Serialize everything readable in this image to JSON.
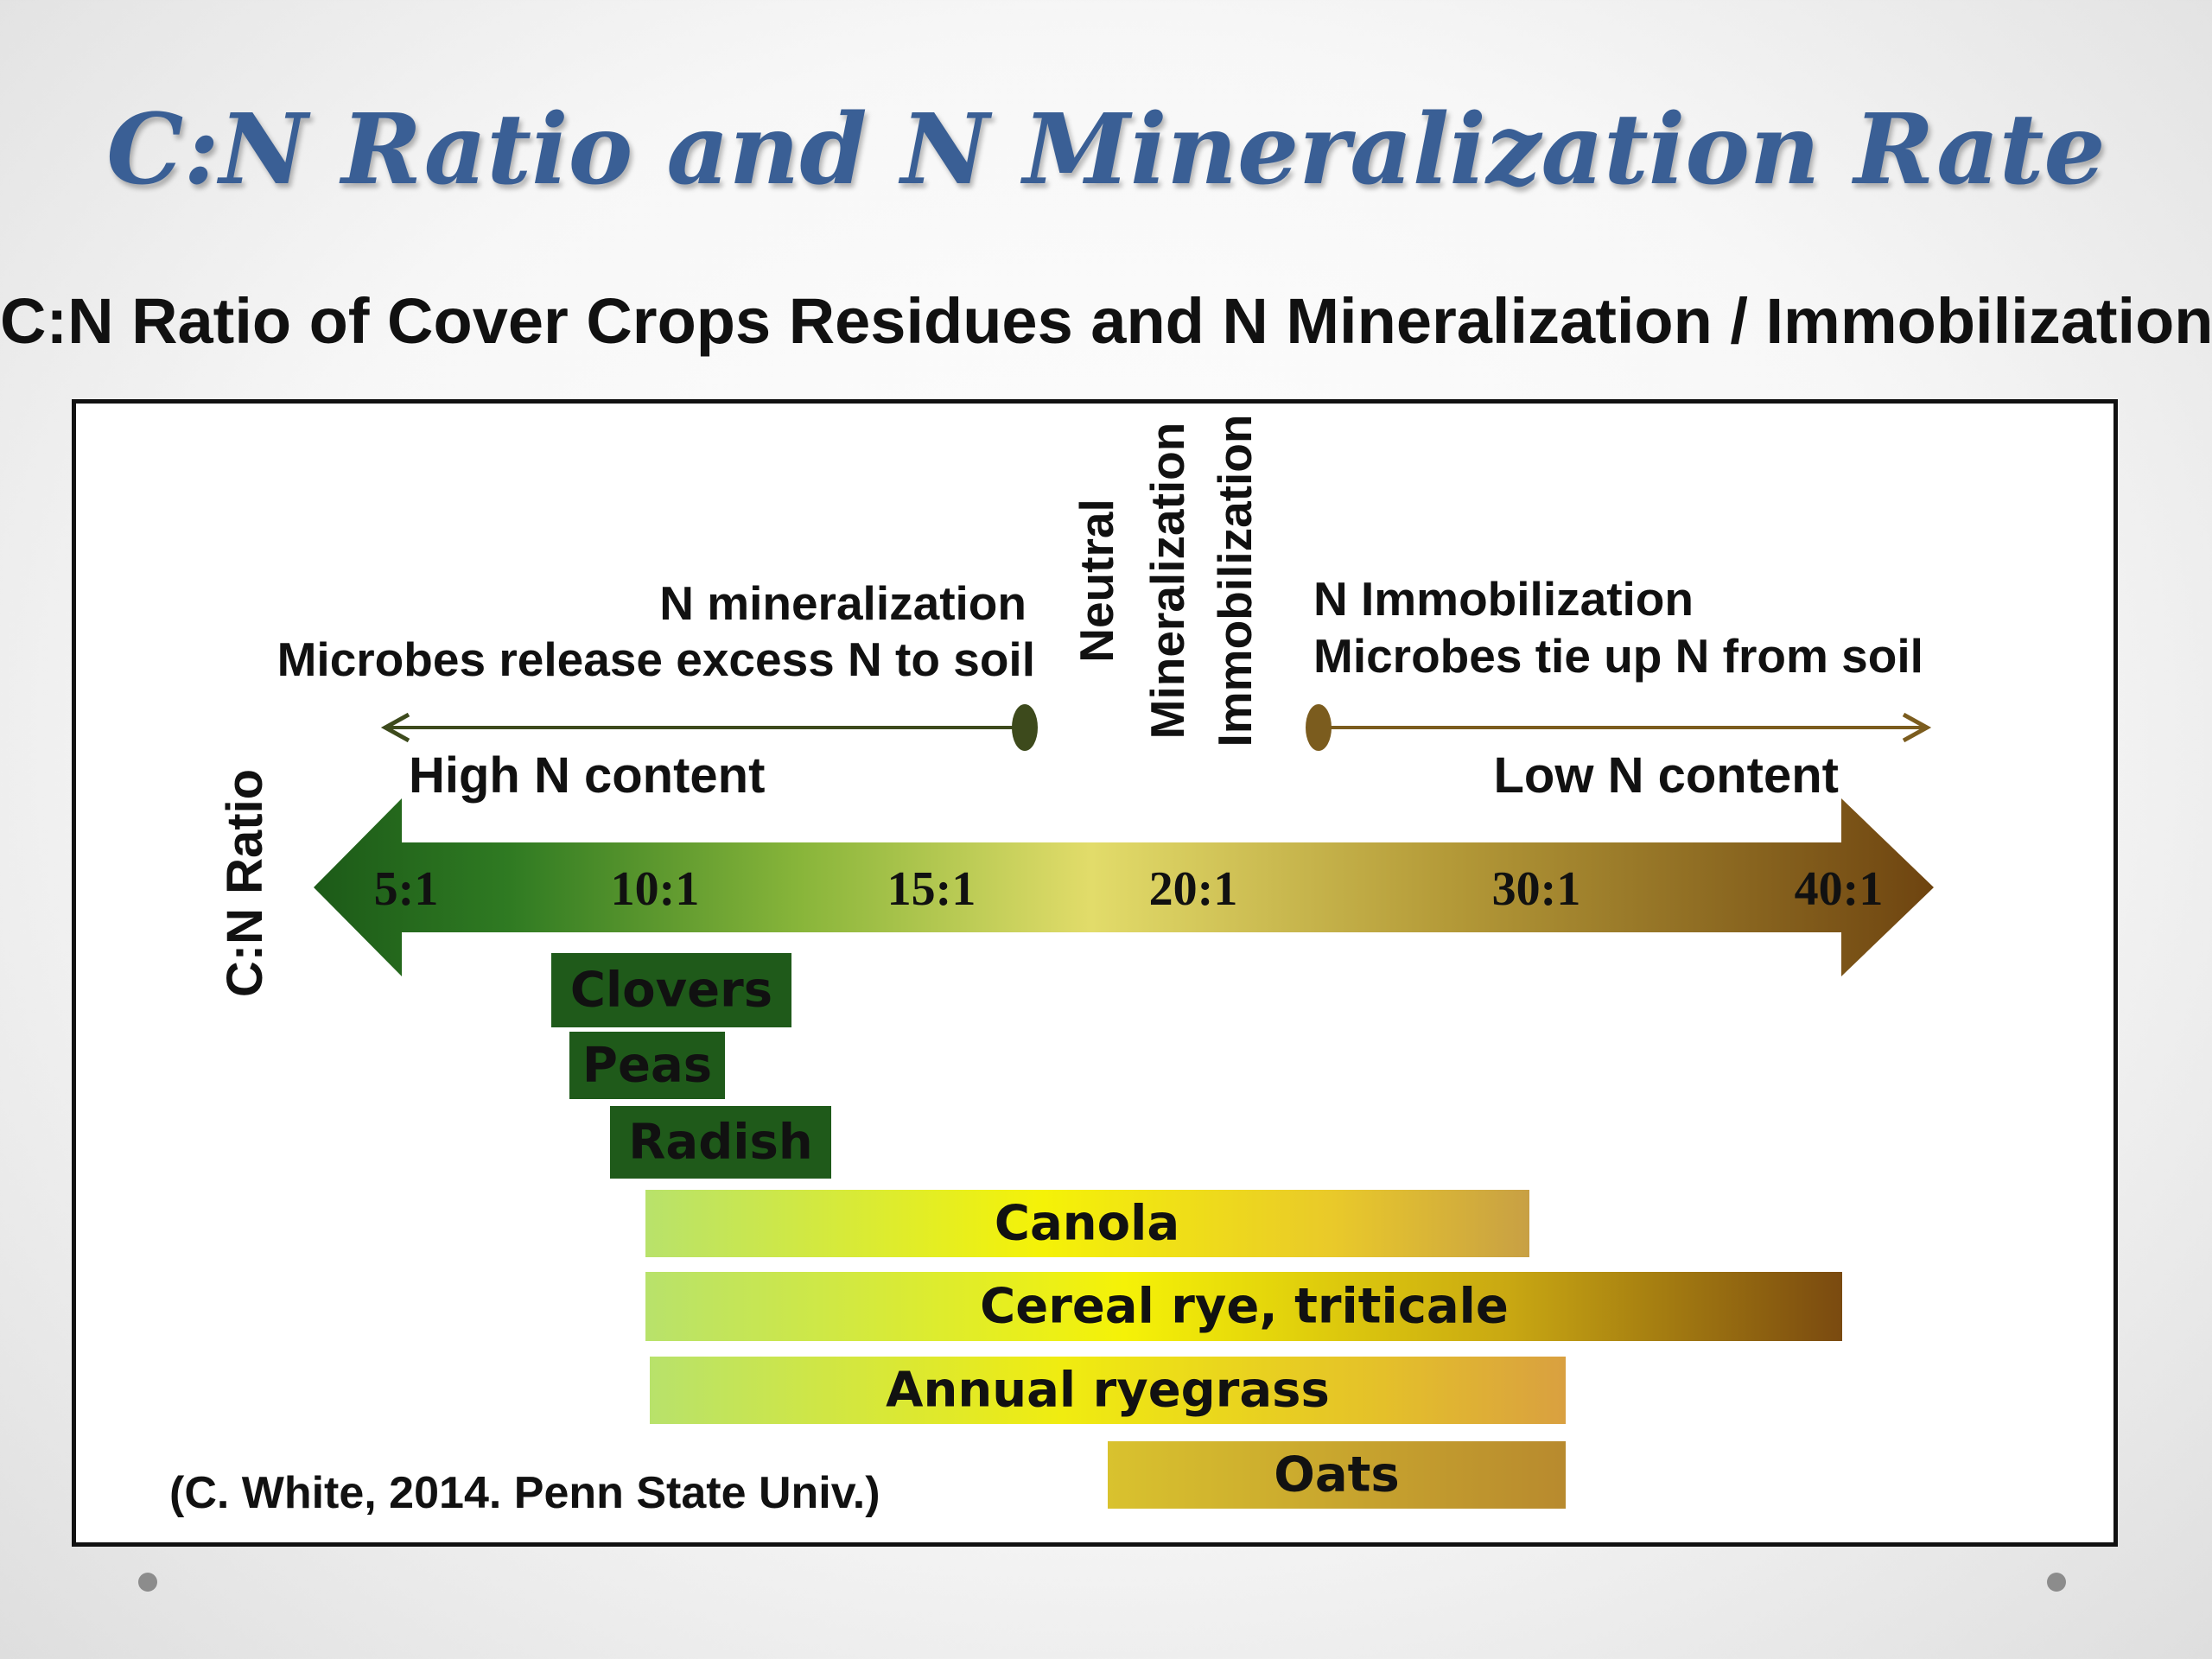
{
  "slide": {
    "title": "C:N Ratio and N Mineralization Rate"
  },
  "diagram": {
    "title": "C:N Ratio of Cover Crops Residues and N Mineralization / Immobilization",
    "axis_label": "C:N Ratio",
    "scale_ticks": [
      "5:1",
      "10:1",
      "15:1",
      "20:1",
      "30:1",
      "40:1"
    ],
    "left_end_label": "High N content",
    "right_end_label": "Low N content",
    "mineralization": {
      "line1": "N mineralization",
      "line2": "Microbes release excess N to soil"
    },
    "immobilization": {
      "line1": "N Immobilization",
      "line2": "Microbes tie up N from soil"
    },
    "neutral_lines": [
      "Neutral",
      "Mineralization",
      "Immobilization"
    ],
    "crops": [
      {
        "label": "Clovers"
      },
      {
        "label": "Peas"
      },
      {
        "label": "Radish"
      },
      {
        "label": "Canola"
      },
      {
        "label": "Cereal rye, triticale"
      },
      {
        "label": "Annual ryegrass"
      },
      {
        "label": "Oats"
      }
    ],
    "citation": "(C. White, 2014. Penn State Univ.)"
  },
  "colors": {
    "title_blue": "#3a5f95",
    "dark_green": "#1f5a1a",
    "light_green": "#b9e06a",
    "yellow": "#f2f20a",
    "brown": "#7a4a10",
    "arrow_left": "#3d4a1c",
    "arrow_right": "#7b5c1e"
  }
}
